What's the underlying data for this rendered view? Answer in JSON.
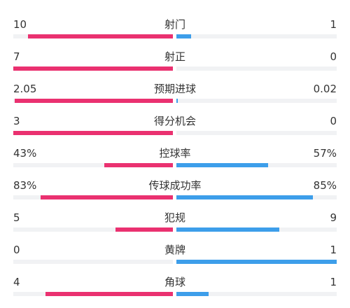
{
  "colors": {
    "home": "#ea3170",
    "away": "#3d9eea"
  },
  "stats": [
    {
      "label": "射门",
      "home": "10",
      "away": "1",
      "home_fraction": 0.91,
      "away_fraction": 0.09
    },
    {
      "label": "射正",
      "home": "7",
      "away": "0",
      "home_fraction": 1.0,
      "away_fraction": 0.0
    },
    {
      "label": "预期进球",
      "home": "2.05",
      "away": "0.02",
      "home_fraction": 0.99,
      "away_fraction": 0.01
    },
    {
      "label": "得分机会",
      "home": "3",
      "away": "0",
      "home_fraction": 1.0,
      "away_fraction": 0.0
    },
    {
      "label": "控球率",
      "home": "43%",
      "away": "57%",
      "home_fraction": 0.43,
      "away_fraction": 0.57
    },
    {
      "label": "传球成功率",
      "home": "83%",
      "away": "85%",
      "home_fraction": 0.83,
      "away_fraction": 0.85
    },
    {
      "label": "犯规",
      "home": "5",
      "away": "9",
      "home_fraction": 0.36,
      "away_fraction": 0.64
    },
    {
      "label": "黄牌",
      "home": "0",
      "away": "1",
      "home_fraction": 0.0,
      "away_fraction": 1.0
    },
    {
      "label": "角球",
      "home": "4",
      "away": "1",
      "home_fraction": 0.8,
      "away_fraction": 0.2
    }
  ]
}
